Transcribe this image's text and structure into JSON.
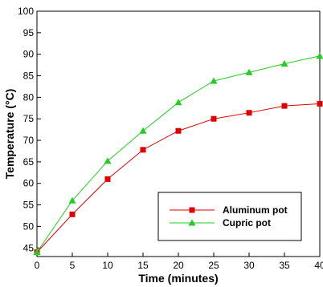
{
  "chart_data": {
    "type": "line",
    "title": "",
    "xlabel": "Time (minutes)",
    "ylabel": "Temperature (°C)",
    "xlim": [
      0,
      40
    ],
    "ylim": [
      43,
      100
    ],
    "x_ticks": [
      0,
      5,
      10,
      15,
      20,
      25,
      30,
      35,
      40
    ],
    "y_ticks": [
      45,
      50,
      55,
      60,
      65,
      70,
      75,
      80,
      85,
      90,
      95,
      100
    ],
    "grid": false,
    "legend_position": "bottom-right",
    "series": [
      {
        "name": "Aluminum pot",
        "color": "#e00000",
        "marker": "square",
        "x": [
          0,
          5,
          10,
          15,
          20,
          25,
          30,
          35,
          40
        ],
        "y": [
          44,
          52.8,
          61,
          67.8,
          72.2,
          75,
          76.4,
          78,
          78.5
        ]
      },
      {
        "name": "Cupric pot",
        "color": "#22cc22",
        "marker": "triangle",
        "x": [
          0,
          5,
          10,
          15,
          20,
          25,
          30,
          35,
          40
        ],
        "y": [
          44,
          56,
          65.2,
          72.2,
          78.8,
          83.8,
          85.8,
          87.8,
          89.6
        ]
      }
    ]
  }
}
